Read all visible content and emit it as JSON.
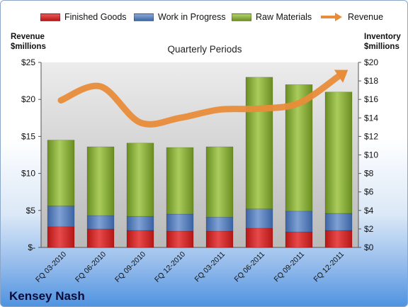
{
  "company": "Kensey Nash",
  "legend": [
    {
      "label": "Finished Goods",
      "color": "#d42a2a"
    },
    {
      "label": "Work in Progress",
      "color": "#5b82bd"
    },
    {
      "label": "Raw Materials",
      "color": "#8cae3a"
    },
    {
      "label": "Revenue",
      "color": "#e98c3a"
    }
  ],
  "chart_data": {
    "type": "bar",
    "title": "Quarterly Periods",
    "ylabel_left": "Revenue\n$millions",
    "ylabel_right": "Inventory\n$millions",
    "categories": [
      "FQ 03-2010",
      "FQ 06-2010",
      "FQ 09-2010",
      "FQ 12-2010",
      "FQ 03-2011",
      "FQ 06-2011",
      "FQ 09-2011",
      "FQ 12-2011"
    ],
    "left_axis": {
      "ylim": [
        0,
        25
      ],
      "ticks": [
        "$-",
        "$5",
        "$10",
        "$15",
        "$20",
        "$25"
      ]
    },
    "right_axis": {
      "ylim": [
        0,
        20
      ],
      "ticks": [
        "$0",
        "$2",
        "$4",
        "$6",
        "$8",
        "$10",
        "$12",
        "$14",
        "$16",
        "$18",
        "$20"
      ]
    },
    "stacked_series_axis": "left",
    "line_series_axis": "right",
    "series": [
      {
        "name": "Finished Goods",
        "kind": "stacked-bar",
        "color": "#d42a2a",
        "values": [
          2.8,
          2.5,
          2.3,
          2.2,
          2.2,
          2.6,
          2.1,
          2.3
        ]
      },
      {
        "name": "Work in Progress",
        "kind": "stacked-bar",
        "color": "#5b82bd",
        "values": [
          2.8,
          1.8,
          1.9,
          2.3,
          1.9,
          2.6,
          2.8,
          2.3
        ]
      },
      {
        "name": "Raw Materials",
        "kind": "stacked-bar",
        "color": "#8cae3a",
        "values": [
          8.9,
          9.3,
          9.9,
          9.0,
          9.5,
          17.8,
          17.1,
          16.4
        ]
      },
      {
        "name": "Revenue",
        "kind": "line",
        "color": "#e98c3a",
        "values": [
          15.9,
          17.4,
          13.5,
          14.0,
          14.9,
          15.0,
          15.6,
          18.5
        ]
      }
    ],
    "grid": false,
    "legend_position": "top"
  }
}
